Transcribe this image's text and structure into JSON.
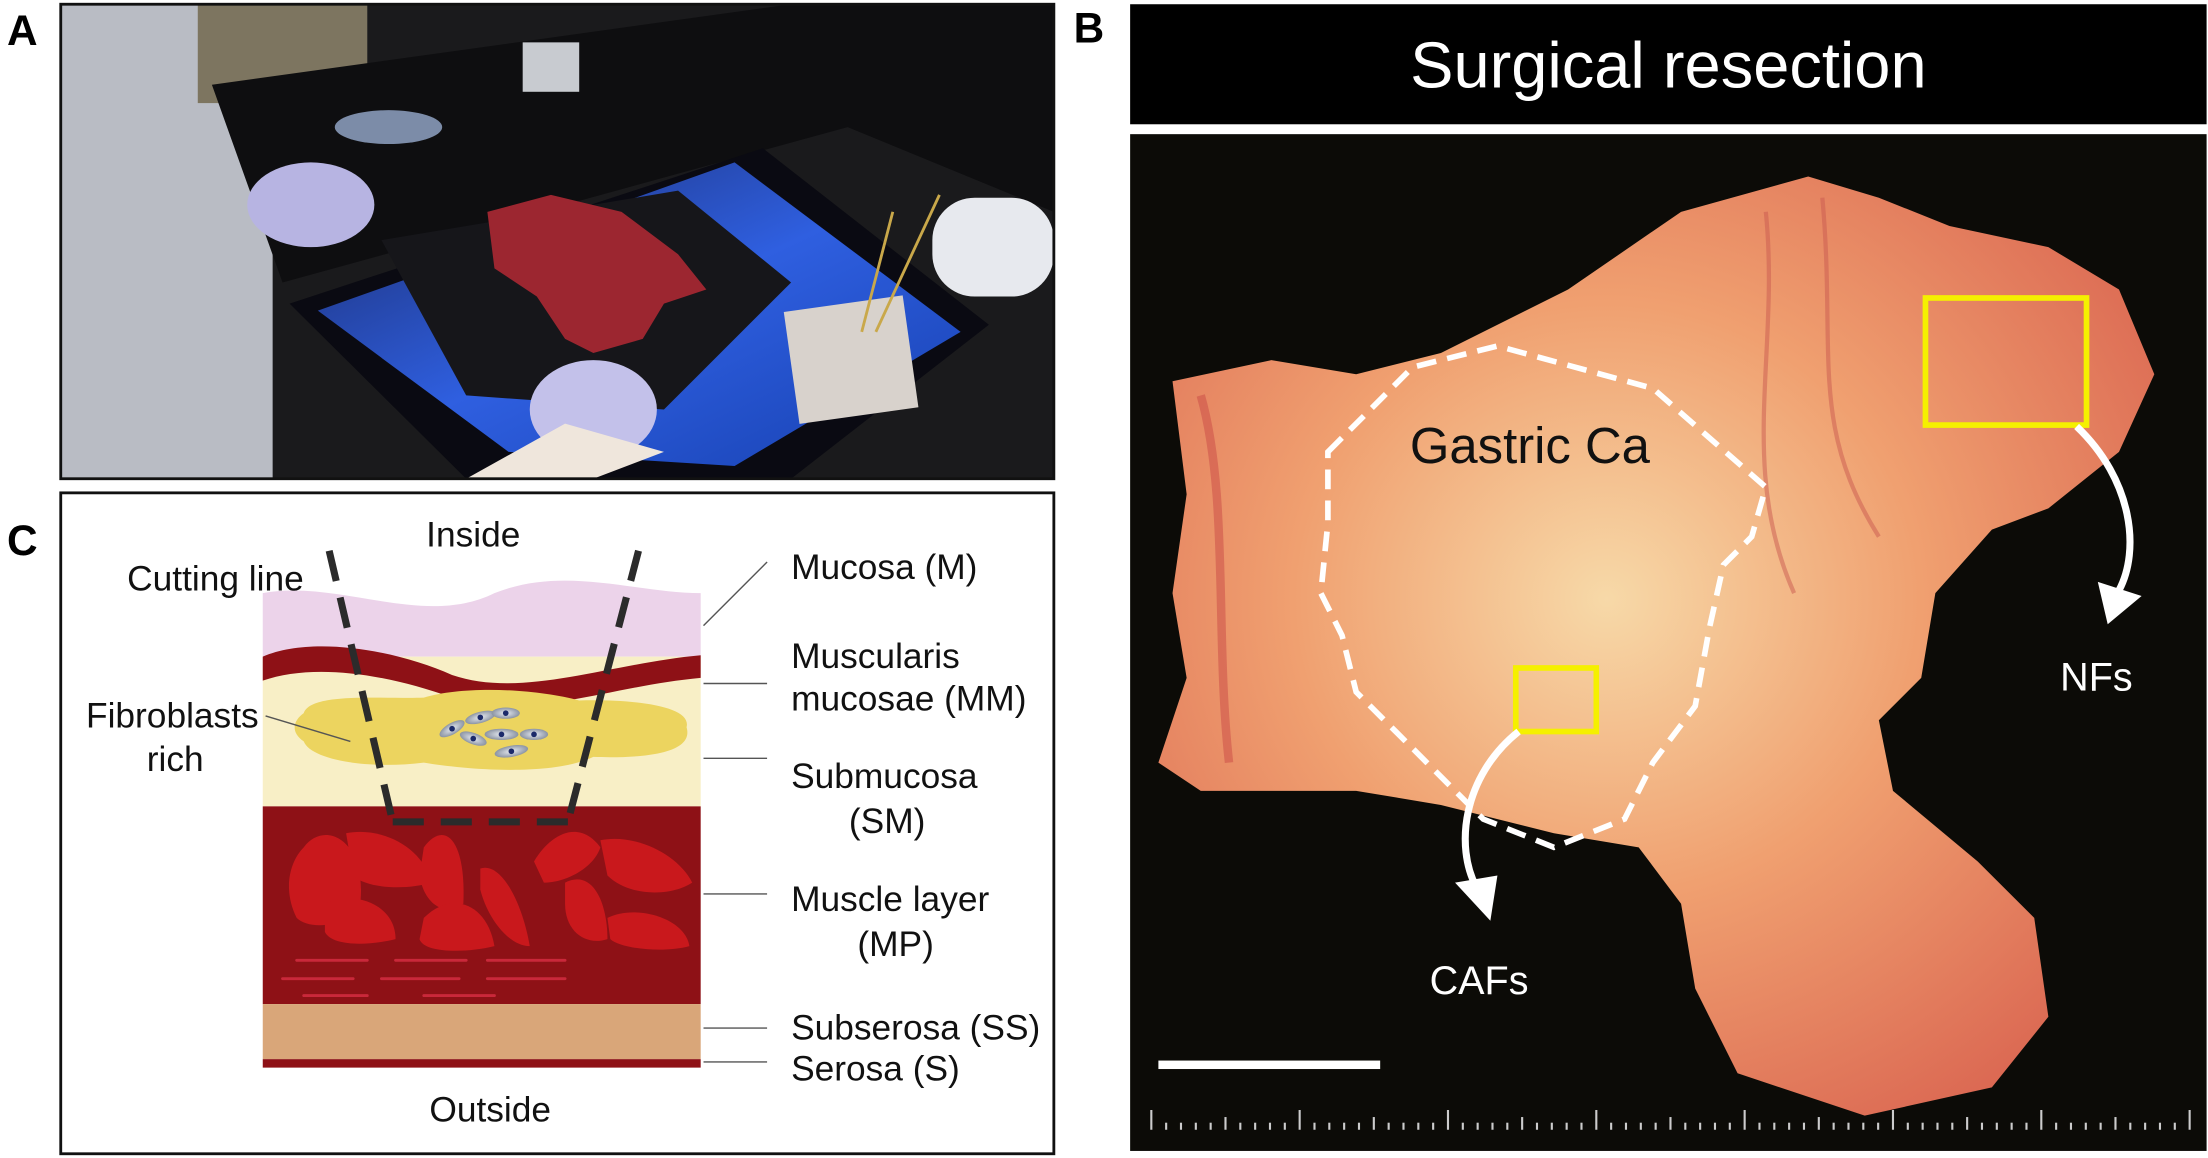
{
  "panels": {
    "a": {
      "label": "A"
    },
    "b": {
      "label": "B",
      "title": "Surgical resection",
      "tumor_label": "Gastric Ca",
      "caf_label": "CAFs",
      "nf_label": "NFs"
    },
    "c": {
      "label": "C",
      "inside": "Inside",
      "outside": "Outside",
      "cutting_line": "Cutting line",
      "fibroblasts_line1": "Fibroblasts",
      "fibroblasts_line2": "rich",
      "layers": [
        {
          "line1": "Mucosa (M)",
          "line2": "",
          "color": "#ecd3ea"
        },
        {
          "line1": "Muscularis",
          "line2": "mucosae (MM)",
          "color": "#8e1116"
        },
        {
          "line1": "Submucosa",
          "line2": "(SM)",
          "color": "#f8efc6"
        },
        {
          "line1": "Muscle layer",
          "line2": "(MP)",
          "color": "#8e1116"
        },
        {
          "line1": "Subserosa (SS)",
          "line2": "",
          "color": "#d9a679"
        },
        {
          "line1": "Serosa (S)",
          "line2": "",
          "color": "#8e1116"
        }
      ]
    }
  },
  "colors": {
    "highlight_box": "#f5f000",
    "muscle_bundle": "#c9181c",
    "fibroblast_zone": "#ecd45f"
  }
}
